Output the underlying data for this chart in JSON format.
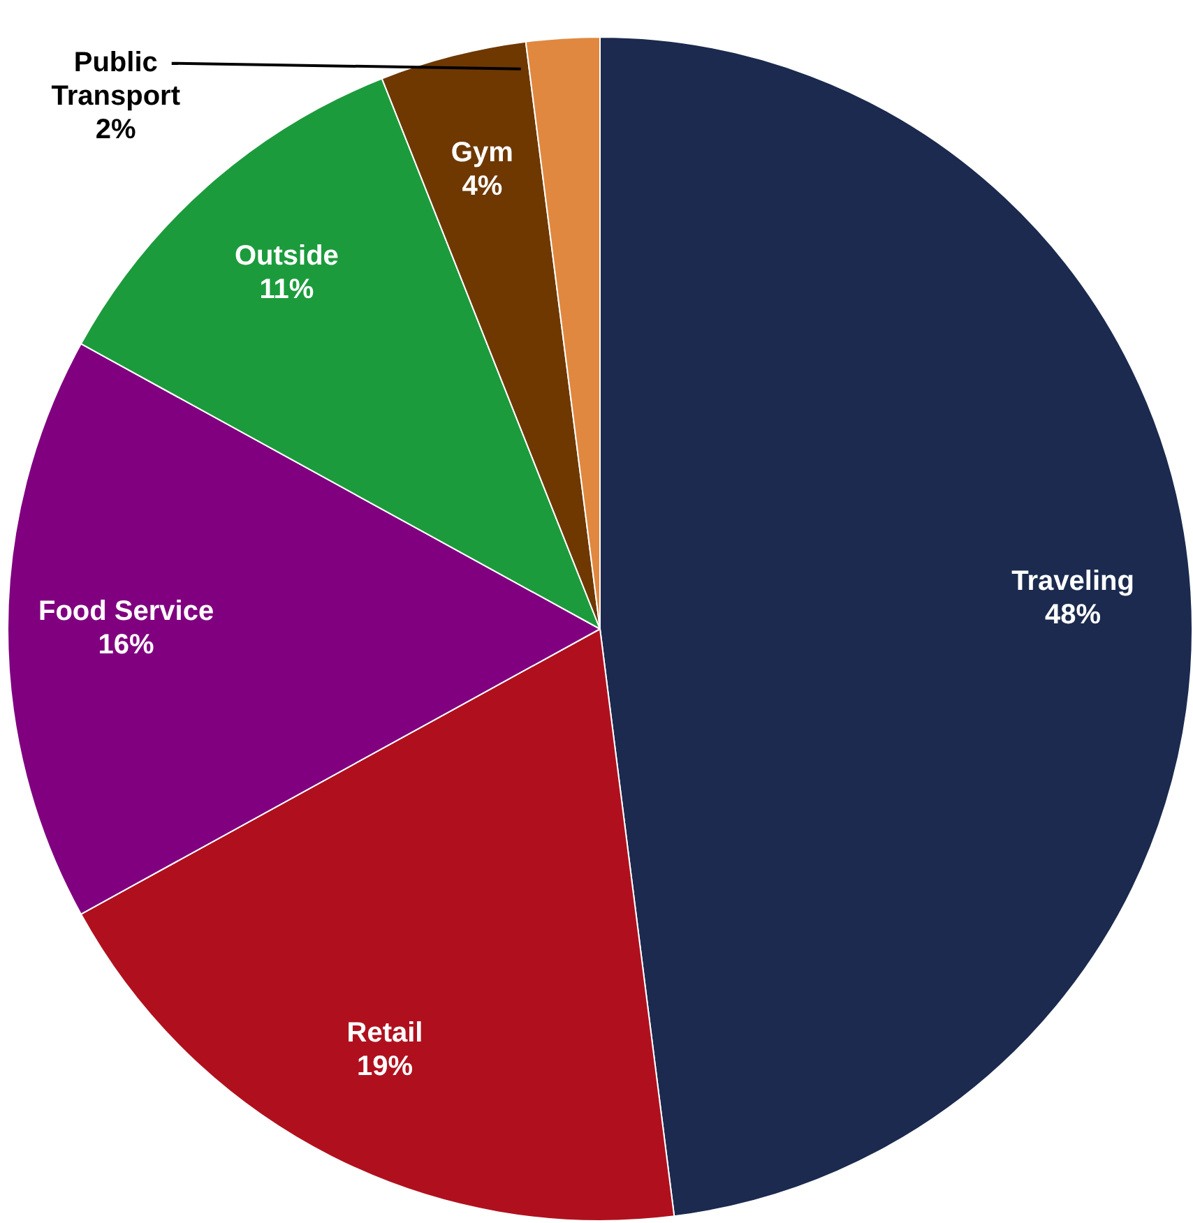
{
  "chart_data": {
    "type": "pie",
    "categories": [
      "Traveling",
      "Retail",
      "Food Service",
      "Outside",
      "Gym",
      "Public Transport"
    ],
    "values": [
      48,
      19,
      16,
      11,
      4,
      2
    ],
    "colors": [
      "#1b2a4e",
      "#b0101e",
      "#800080",
      "#1c9b3c",
      "#6e3800",
      "#e08840"
    ],
    "value_labels": [
      "48%",
      "19%",
      "16%",
      "11%",
      "4%",
      "2%"
    ],
    "legend": false
  }
}
